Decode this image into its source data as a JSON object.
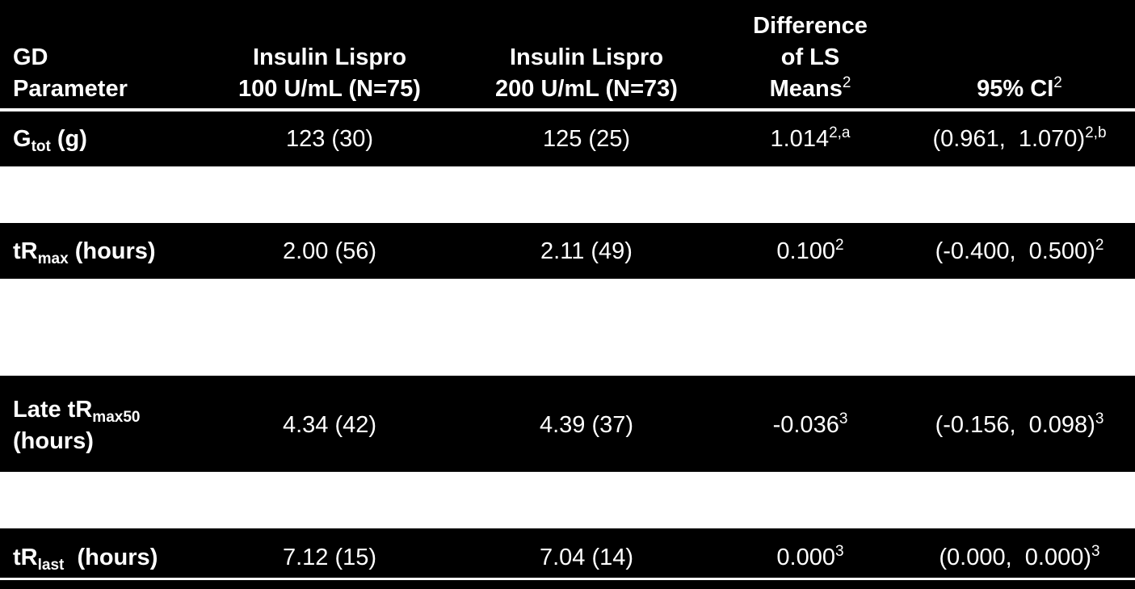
{
  "header": {
    "col1": {
      "line1": "GD",
      "line2": "Parameter"
    },
    "col2": {
      "line1": "Insulin Lispro",
      "line2": "100 U/mL (N=75)"
    },
    "col3": {
      "line1": "Insulin Lispro",
      "line2": "200 U/mL (N=73)"
    },
    "col4": {
      "line1": "Difference",
      "line2": "of LS",
      "line3": "Means",
      "sup": "2"
    },
    "col5": {
      "text": "95% CI",
      "sup": "2"
    }
  },
  "rows": [
    {
      "param_base": "G",
      "param_sub": "tot",
      "param_rest": " (g)",
      "v100": "123 (30)",
      "v200": "125 (25)",
      "diff": "1.014",
      "diff_sup": "2,a",
      "ci": "(0.961,  1.070)",
      "ci_sup": "2,b"
    },
    {
      "param_base": "tR",
      "param_sub": "max",
      "param_rest": " (hours)",
      "v100": "2.00 (56)",
      "v200": "2.11 (49)",
      "diff": "0.100",
      "diff_sup": "2",
      "ci": "(-0.400,  0.500)",
      "ci_sup": "2"
    },
    {
      "param_base": "Late tR",
      "param_sub": "max50",
      "param_line2": "(hours)",
      "v100": "4.34 (42)",
      "v200": "4.39 (37)",
      "diff": "-0.036",
      "diff_sup": "3",
      "ci": "(-0.156,  0.098)",
      "ci_sup": "3"
    },
    {
      "param_base": "tR",
      "param_sub": "last",
      "param_rest": "  (hours)",
      "v100": "7.12 (15)",
      "v200": "7.04 (14)",
      "diff": "0.000",
      "diff_sup": "3",
      "ci": "(0.000,  0.000)",
      "ci_sup": "3"
    }
  ]
}
